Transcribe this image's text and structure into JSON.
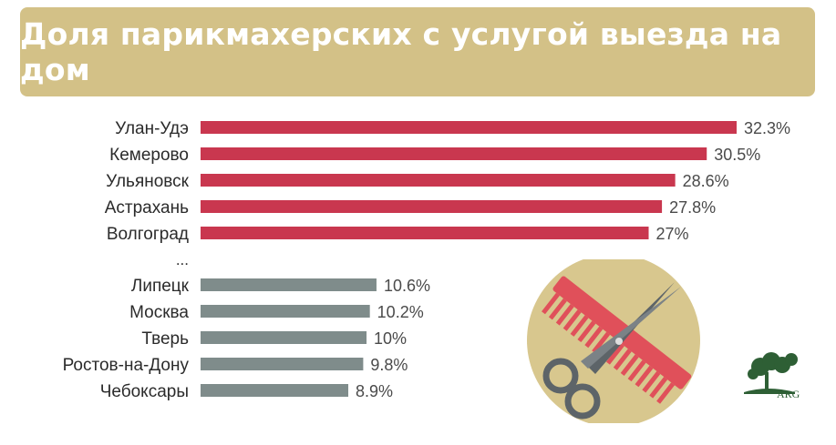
{
  "title": "Доля парикмахерских с услугой выезда на дом",
  "colors": {
    "banner": "#d3c187",
    "top_bars": "#c9374f",
    "bottom_bars": "#7f8c8b",
    "circle": "#d8c78e"
  },
  "logo_text": "ARG",
  "chart_data": {
    "type": "bar",
    "orientation": "horizontal",
    "title": "Доля парикмахерских с услугой выезда на дом",
    "xlim": [
      0,
      32.3
    ],
    "groups": [
      {
        "color": "#c9374f",
        "categories": [
          "Улан-Удэ",
          "Кемерово",
          "Ульяновск",
          "Астрахань",
          "Волгоград"
        ],
        "values": [
          32.3,
          30.5,
          28.6,
          27.8,
          27
        ],
        "labels": [
          "32.3%",
          "30.5%",
          "28.6%",
          "27.8%",
          "27%"
        ]
      },
      {
        "color": "#7f8c8b",
        "categories": [
          "Липецк",
          "Москва",
          "Тверь",
          "Ростов-на-Дону",
          "Чебоксары"
        ],
        "values": [
          10.6,
          10.2,
          10,
          9.8,
          8.9
        ],
        "labels": [
          "10.6%",
          "10.2%",
          "10%",
          "9.8%",
          "8.9%"
        ]
      }
    ],
    "separator": "..."
  }
}
